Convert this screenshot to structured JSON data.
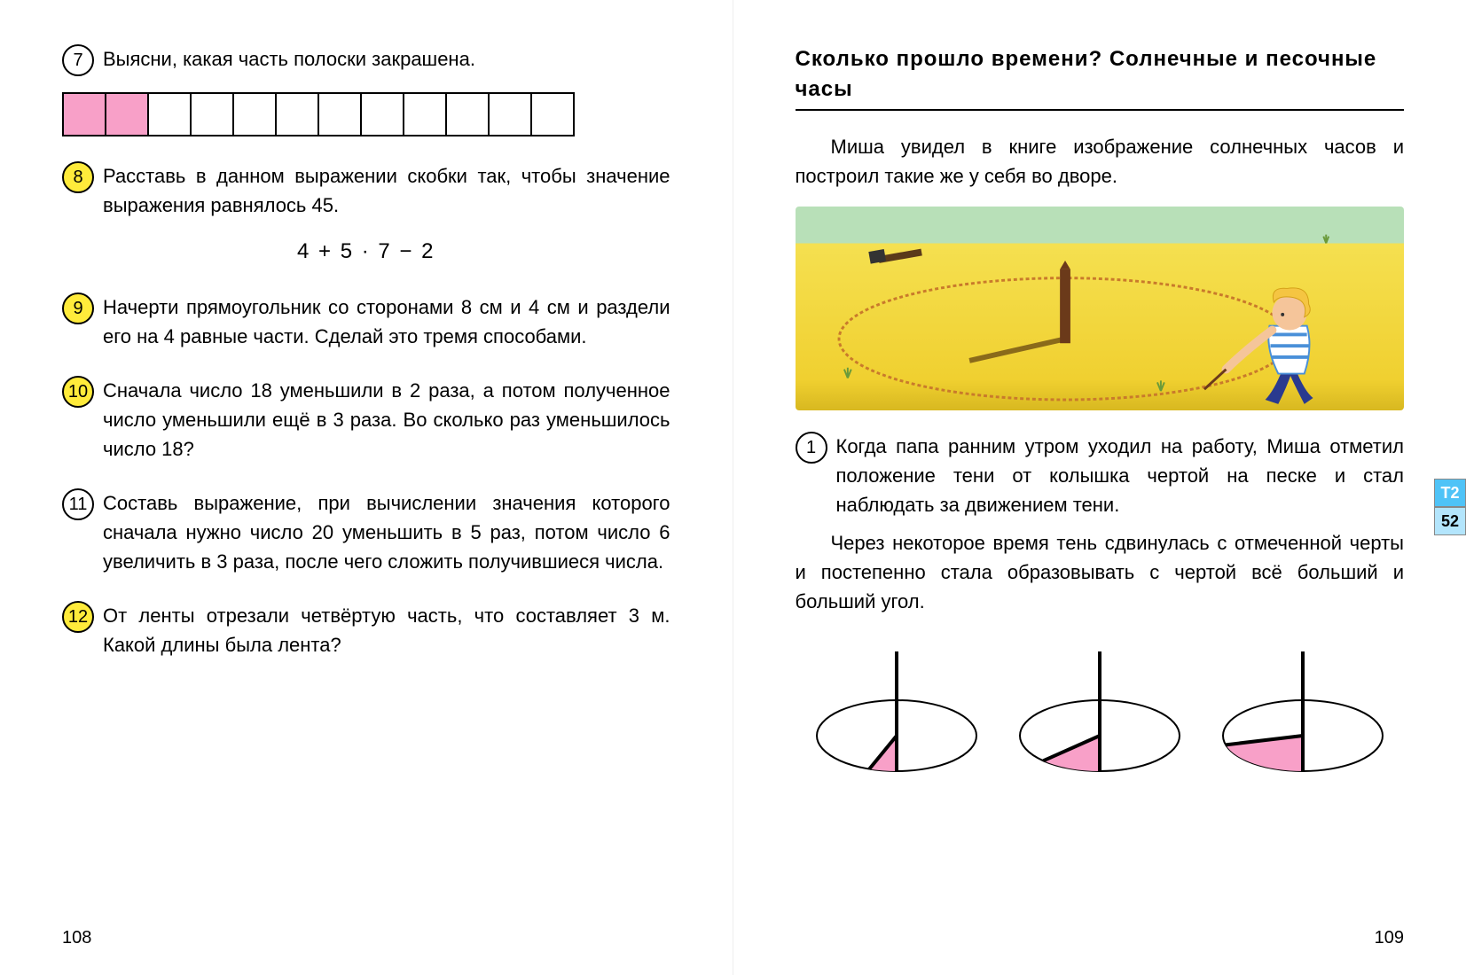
{
  "left": {
    "page_number": "108",
    "tasks": {
      "t7": {
        "num": "7",
        "text": "Выясни, какая часть полоски закрашена.",
        "strip": {
          "total_cells": 12,
          "filled_cells": 2,
          "fill_color": "#f8a0c8",
          "border_color": "#000000"
        }
      },
      "t8": {
        "num": "8",
        "text": "Расставь в данном выражении скобки так, чтобы значение выражения равнялось 45.",
        "formula": "4 + 5 · 7 − 2"
      },
      "t9": {
        "num": "9",
        "text": "Начерти прямоугольник со сторонами 8 см и 4 см и раздели его на 4 равные части. Сделай это тремя способами."
      },
      "t10": {
        "num": "10",
        "text": "Сначала число 18 уменьшили в 2 раза, а потом полученное число уменьшили ещё в 3 раза. Во сколько раз уменьшилось число 18?"
      },
      "t11": {
        "num": "11",
        "text": "Составь выражение, при вычислении значения которого сначала нужно число 20 уменьшить в 5 раз, потом число 6 увеличить в 3 раза, после чего сложить получившиеся числа."
      },
      "t12": {
        "num": "12",
        "text": "От ленты отрезали четвёртую часть, что составляет 3 м. Какой длины была лента?"
      }
    }
  },
  "right": {
    "page_number": "109",
    "section_title": "Сколько прошло времени? Солнечные и песочные часы",
    "intro": "Миша увидел в книге изображение солнечных часов и построил такие же у себя во дворе.",
    "illustration": {
      "sky_color": "#b8e0b8",
      "sand_color": "#f5e050",
      "sand_dark": "#d8b820",
      "stake_color": "#6b3a1a",
      "boy_shirt": "#ffffff",
      "boy_stripes": "#4a90d9",
      "boy_hair": "#f5c542",
      "boy_pants": "#2a3a8f"
    },
    "task1": {
      "num": "1",
      "para1": "Когда папа ранним утром уходил на работу, Миша отметил положение тени от колышка чертой на песке и стал наблюдать за движением тени.",
      "para2": "Через некоторое время тень сдвинулась с отмеченной черты и постепенно стала образовывать с чертой всё больший и больший угол."
    },
    "sundials": {
      "ellipse_stroke": "#000000",
      "ellipse_fill": "#ffffff",
      "sector_fill": "#f8a0c8",
      "line_color": "#000000",
      "line_width": 4,
      "diagrams": [
        {
          "angle_deg": 20
        },
        {
          "angle_deg": 45
        },
        {
          "angle_deg": 75
        }
      ]
    },
    "margin_tags": {
      "t2": "Т2",
      "n52": "52"
    }
  },
  "colors": {
    "task_highlight": "#ffeb3b",
    "text": "#000000",
    "background": "#ffffff"
  }
}
